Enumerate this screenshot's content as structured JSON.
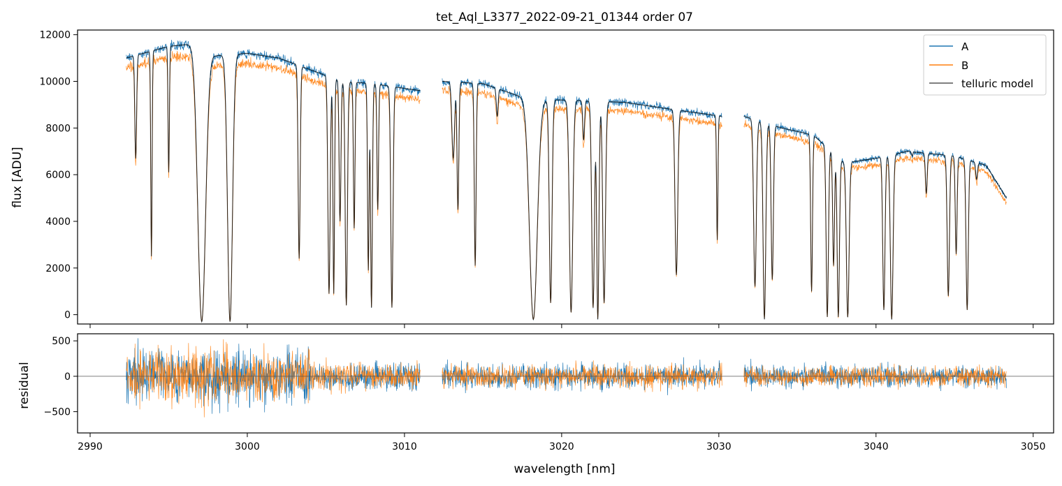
{
  "chart_data": [
    {
      "type": "line",
      "panel": "flux",
      "title": "tet_Aql_L3377_2022-09-21_01344  order 07",
      "xlabel": "",
      "ylabel": "flux [ADU]",
      "xlim": [
        2989.2,
        3051.3
      ],
      "ylim": [
        -400,
        12200
      ],
      "yticks": [
        0,
        2000,
        4000,
        6000,
        8000,
        10000,
        12000
      ],
      "xticks": [
        2990,
        3000,
        3010,
        3020,
        3030,
        3040,
        3050
      ],
      "xticklabels_shown": false,
      "legend": {
        "placement": "top-right",
        "entries": [
          "A",
          "B",
          "telluric model"
        ]
      },
      "colors": {
        "A": "#1f77b4",
        "B": "#ff7f0e",
        "telluric model": "#000000"
      },
      "segments": [
        {
          "x0": 2992.3,
          "x1": 3011.0
        },
        {
          "x0": 3012.4,
          "x1": 3030.2
        },
        {
          "x0": 3031.6,
          "x1": 3048.3
        }
      ],
      "continuum": [
        [
          2992.3,
          11000
        ],
        [
          2995.0,
          11500
        ],
        [
          2996.5,
          11600
        ],
        [
          2998.0,
          11100
        ],
        [
          3000.0,
          11200
        ],
        [
          3002.0,
          11000
        ],
        [
          3004.0,
          10500
        ],
        [
          3006.0,
          10000
        ],
        [
          3008.0,
          9900
        ],
        [
          3011.0,
          9600
        ],
        [
          3012.4,
          10000
        ],
        [
          3015.0,
          9900
        ],
        [
          3018.0,
          9200
        ],
        [
          3020.0,
          9200
        ],
        [
          3024.0,
          9100
        ],
        [
          3027.0,
          8800
        ],
        [
          3030.2,
          8500
        ],
        [
          3031.6,
          8500
        ],
        [
          3034.0,
          8000
        ],
        [
          3036.0,
          7700
        ],
        [
          3038.0,
          6500
        ],
        [
          3040.0,
          6700
        ],
        [
          3042.0,
          7000
        ],
        [
          3045.0,
          6800
        ],
        [
          3047.0,
          6400
        ],
        [
          3048.3,
          5000
        ]
      ],
      "series": [
        {
          "name": "A",
          "approximate_absorption_lines": [
            {
              "x": 2992.9,
              "min": 6700,
              "w": 0.08
            },
            {
              "x": 2993.9,
              "min": 2500,
              "w": 0.06
            },
            {
              "x": 2995.0,
              "min": 6100,
              "w": 0.06
            },
            {
              "x": 2997.1,
              "min": -300,
              "w": 0.35
            },
            {
              "x": 2998.9,
              "min": -300,
              "w": 0.22
            },
            {
              "x": 3003.3,
              "min": 2400,
              "w": 0.09
            },
            {
              "x": 3005.2,
              "min": 900,
              "w": 0.1
            },
            {
              "x": 3005.5,
              "min": 900,
              "w": 0.07
            },
            {
              "x": 3005.9,
              "min": 4000,
              "w": 0.08
            },
            {
              "x": 3006.3,
              "min": 400,
              "w": 0.1
            },
            {
              "x": 3006.8,
              "min": 3700,
              "w": 0.07
            },
            {
              "x": 3007.7,
              "min": 1900,
              "w": 0.07
            },
            {
              "x": 3007.9,
              "min": 300,
              "w": 0.08
            },
            {
              "x": 3008.3,
              "min": 4500,
              "w": 0.07
            },
            {
              "x": 3009.2,
              "min": 300,
              "w": 0.1
            },
            {
              "x": 3013.1,
              "min": 6700,
              "w": 0.12
            },
            {
              "x": 3013.4,
              "min": 4500,
              "w": 0.08
            },
            {
              "x": 3014.5,
              "min": 2100,
              "w": 0.08
            },
            {
              "x": 3015.9,
              "min": 8500,
              "w": 0.08
            },
            {
              "x": 3018.2,
              "min": -200,
              "w": 0.35
            },
            {
              "x": 3019.3,
              "min": 500,
              "w": 0.12
            },
            {
              "x": 3020.6,
              "min": 100,
              "w": 0.15
            },
            {
              "x": 3021.4,
              "min": 7500,
              "w": 0.08
            },
            {
              "x": 3022.0,
              "min": 300,
              "w": 0.12
            },
            {
              "x": 3022.3,
              "min": -200,
              "w": 0.1
            },
            {
              "x": 3022.7,
              "min": 500,
              "w": 0.12
            },
            {
              "x": 3027.3,
              "min": 1700,
              "w": 0.12
            },
            {
              "x": 3029.9,
              "min": 3200,
              "w": 0.06
            },
            {
              "x": 3032.3,
              "min": 1200,
              "w": 0.12
            },
            {
              "x": 3032.9,
              "min": -200,
              "w": 0.12
            },
            {
              "x": 3033.4,
              "min": 1500,
              "w": 0.1
            },
            {
              "x": 3035.9,
              "min": 1000,
              "w": 0.08
            },
            {
              "x": 3036.9,
              "min": -100,
              "w": 0.1
            },
            {
              "x": 3037.3,
              "min": 2100,
              "w": 0.08
            },
            {
              "x": 3037.6,
              "min": -100,
              "w": 0.1
            },
            {
              "x": 3038.2,
              "min": -100,
              "w": 0.12
            },
            {
              "x": 3040.5,
              "min": 200,
              "w": 0.1
            },
            {
              "x": 3041.0,
              "min": -200,
              "w": 0.12
            },
            {
              "x": 3042.3,
              "min": 6800,
              "w": 0.06
            },
            {
              "x": 3043.2,
              "min": 5200,
              "w": 0.08
            },
            {
              "x": 3044.6,
              "min": 800,
              "w": 0.1
            },
            {
              "x": 3045.1,
              "min": 2600,
              "w": 0.08
            },
            {
              "x": 3045.8,
              "min": 200,
              "w": 0.1
            },
            {
              "x": 3046.4,
              "min": 5800,
              "w": 0.08
            }
          ]
        },
        {
          "name": "B",
          "scale": 0.96
        },
        {
          "name": "telluric model"
        }
      ]
    },
    {
      "type": "line",
      "panel": "residual",
      "xlabel": "wavelength [nm]",
      "ylabel": "residual",
      "xlim": [
        2989.2,
        3051.3
      ],
      "ylim": [
        -800,
        600
      ],
      "yticks": [
        -500,
        0,
        500
      ],
      "yticklabels": [
        "−500",
        "0",
        "500"
      ],
      "xticks": [
        2990,
        3000,
        3010,
        3020,
        3030,
        3040,
        3050
      ],
      "xticklabels": [
        "2990",
        "3000",
        "3010",
        "3020",
        "3030",
        "3040",
        "3050"
      ],
      "zero_line": true,
      "series": [
        {
          "name": "A",
          "approximate_rms_by_region": [
            [
              2992.3,
              3004.0,
              330
            ],
            [
              3004.0,
              3011.0,
              170
            ],
            [
              3012.4,
              3030.2,
              150
            ],
            [
              3031.6,
              3048.3,
              130
            ]
          ]
        },
        {
          "name": "B",
          "approximate_rms_by_region": [
            [
              2992.3,
              3004.0,
              310
            ],
            [
              3004.0,
              3011.0,
              160
            ],
            [
              3012.4,
              3030.2,
              140
            ],
            [
              3031.6,
              3048.3,
              120
            ]
          ]
        }
      ]
    }
  ]
}
